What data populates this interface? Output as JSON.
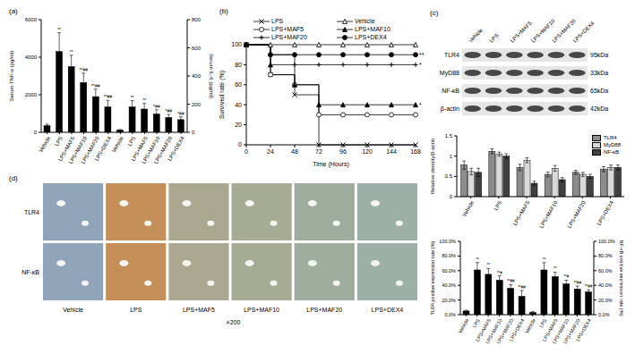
{
  "chart_data": [
    {
      "type": "bar",
      "title": "(a)",
      "categories": [
        "Vehicle",
        "LPS",
        "LPS+MAF5",
        "LPS+MAF10",
        "LPS+MAF20",
        "LPS+DEX4",
        "Vehicle",
        "LPS",
        "LPS+MAF5",
        "LPS+MAF10",
        "LPS+MAF20",
        "LPS+DEX4"
      ],
      "y_label": "Serum TNF-α (pg/ml)",
      "y2_label": "Serum IL-6 (pg/ml)",
      "ylim": [
        0,
        6000
      ],
      "yticks": [
        0,
        2000,
        4000,
        6000
      ],
      "y2lim": [
        0,
        800
      ],
      "y2ticks": [
        0,
        200,
        400,
        600,
        800
      ],
      "series": [
        {
          "color": "#000000",
          "values": [
            350,
            4300,
            3500,
            2650,
            1900,
            1350,
            null,
            null,
            null,
            null,
            null,
            null
          ],
          "errors": [
            80,
            1000,
            600,
            500,
            400,
            350,
            null,
            null,
            null,
            null,
            null,
            null
          ],
          "significance": [
            null,
            "**",
            "**",
            "**##",
            "**##",
            "**##",
            null,
            null,
            null,
            null,
            null,
            null
          ]
        },
        {
          "axis": "y2",
          "color": "#000000",
          "values": [
            null,
            null,
            null,
            null,
            null,
            null,
            15,
            180,
            165,
            130,
            105,
            90
          ],
          "errors": [
            null,
            null,
            null,
            null,
            null,
            null,
            5,
            45,
            40,
            30,
            22,
            20
          ],
          "significance": [
            null,
            null,
            null,
            null,
            null,
            null,
            null,
            "**",
            "**",
            "*##",
            "*##",
            "*##"
          ]
        }
      ]
    },
    {
      "type": "line",
      "title": "(b)",
      "x": [
        0,
        24,
        48,
        72,
        96,
        120,
        144,
        168
      ],
      "x_label": "Time (Hours)",
      "y_label": "Survived rate (%)",
      "xlim": [
        0,
        168
      ],
      "xticks": [
        0,
        24,
        48,
        72,
        96,
        120,
        144,
        168
      ],
      "ylim": [
        0,
        100
      ],
      "yticks": [
        0,
        20,
        40,
        60,
        80,
        100
      ],
      "line_style": "step",
      "series": [
        {
          "name": "LPS",
          "marker": "x",
          "color": "#000000",
          "values": [
            100,
            70,
            50,
            0,
            0,
            0,
            0,
            0
          ]
        },
        {
          "name": "Vehicle",
          "marker": "triangle_open",
          "color": "#000000",
          "values": [
            100,
            100,
            100,
            100,
            100,
            100,
            100,
            100
          ]
        },
        {
          "name": "LPS+MAF5",
          "marker": "circle_open",
          "color": "#000000",
          "values": [
            100,
            70,
            60,
            30,
            30,
            30,
            30,
            30
          ]
        },
        {
          "name": "LPS+MAF10",
          "marker": "triangle",
          "color": "#000000",
          "values": [
            100,
            80,
            60,
            40,
            40,
            40,
            40,
            40
          ],
          "significance": "*"
        },
        {
          "name": "LPS+MAF20",
          "marker": "plus",
          "color": "#000000",
          "values": [
            100,
            90,
            80,
            80,
            80,
            80,
            80,
            80
          ],
          "significance": "*"
        },
        {
          "name": "LPS+DEX4",
          "marker": "circle",
          "color": "#000000",
          "values": [
            100,
            90,
            90,
            90,
            90,
            90,
            90,
            90
          ],
          "significance": "**"
        }
      ]
    },
    {
      "type": "bar",
      "categories": [
        "Vehicle",
        "LPS",
        "LPS+MAF5",
        "LPS+MAF10",
        "LPS+MAF20",
        "LPS+DEX4"
      ],
      "y_label": "Relative density/β-actin",
      "ylim": [
        0,
        1.5
      ],
      "yticks": [
        0,
        0.5,
        1,
        1.5
      ],
      "legend": "upper right",
      "series": [
        {
          "name": "TLR4",
          "color": "#8c8c8c",
          "values": [
            0.78,
            1.12,
            0.72,
            0.55,
            0.6,
            0.68
          ],
          "errors": [
            0.1,
            0.06,
            0.08,
            0.06,
            0.05,
            0.06
          ]
        },
        {
          "name": "MyD88",
          "color": "#d9d9d9",
          "values": [
            0.62,
            1.05,
            0.9,
            0.7,
            0.55,
            0.72
          ],
          "errors": [
            0.08,
            0.05,
            0.06,
            0.07,
            0.05,
            0.06
          ]
        },
        {
          "name": "NF-κB",
          "color": "#404040",
          "values": [
            0.6,
            1.0,
            0.33,
            0.42,
            0.5,
            0.72
          ],
          "errors": [
            0.1,
            0.06,
            0.05,
            0.05,
            0.05,
            0.06
          ]
        }
      ]
    },
    {
      "type": "bar",
      "categories": [
        "Vehicle",
        "LPS",
        "LPS+MAF5",
        "LPS+MAF10",
        "LPS+MAF20",
        "LPS+DEX4",
        "Vehicle",
        "LPS",
        "LPS+MAF5",
        "LPS+MAF10",
        "LPS+MAF20",
        "LPS+DEX4"
      ],
      "y_label": "TLR4 positive expression rate (%)",
      "y2_label": "NF-κB positive expression rate (%)",
      "ylim": [
        0,
        100
      ],
      "yticks": [
        {
          "value": 0,
          "label": "0.0%"
        },
        {
          "value": 20,
          "label": "20.0%"
        },
        {
          "value": 40,
          "label": "40.0%"
        },
        {
          "value": 60,
          "label": "60.0%"
        },
        {
          "value": 80,
          "label": "80.0%"
        },
        {
          "value": 100,
          "label": "100.0%"
        }
      ],
      "y2lim": [
        0,
        100
      ],
      "y2ticks": [
        {
          "value": 0,
          "label": "0.0%"
        },
        {
          "value": 20,
          "label": "20.0%"
        },
        {
          "value": 40,
          "label": "40.0%"
        },
        {
          "value": 60,
          "label": "60.0%"
        },
        {
          "value": 80,
          "label": "80.0%"
        },
        {
          "value": 100,
          "label": "100.0%"
        }
      ],
      "series": [
        {
          "color": "#000000",
          "values": [
            5,
            61,
            55,
            47,
            36,
            25,
            null,
            null,
            null,
            null,
            null,
            null
          ],
          "errors": [
            1,
            10,
            8,
            6,
            5,
            8,
            null,
            null,
            null,
            null,
            null,
            null
          ],
          "significance": [
            null,
            "**",
            "**",
            "**#",
            "**##",
            "**##",
            null,
            null,
            null,
            null,
            null,
            null
          ]
        },
        {
          "axis": "y2",
          "color": "#000000",
          "values": [
            null,
            null,
            null,
            null,
            null,
            null,
            3,
            61,
            52,
            42,
            35,
            31
          ],
          "errors": [
            null,
            null,
            null,
            null,
            null,
            null,
            1,
            10,
            6,
            5,
            4,
            3
          ],
          "significance": [
            null,
            null,
            null,
            null,
            null,
            null,
            null,
            "**",
            "**",
            "**#",
            "**##",
            "**##"
          ]
        }
      ]
    }
  ],
  "western_blot": {
    "title": "(c)",
    "lanes": [
      "Vehicle",
      "LPS",
      "LPS+MAF5",
      "LPS+MAF10",
      "LPS+MAF20",
      "LPS+DEX4"
    ],
    "rows": [
      {
        "protein": "TLR4",
        "size": "95kDa"
      },
      {
        "protein": "MyD88",
        "size": "33kDa"
      },
      {
        "protein": "NF-κB",
        "size": "65kDa"
      },
      {
        "protein": "β-actin",
        "size": "42kDa"
      }
    ]
  },
  "ihc": {
    "title": "(d)",
    "rows": [
      "TLR4",
      "NF-κB"
    ],
    "columns": [
      "Vehicle",
      "LPS",
      "LPS+MAF5",
      "LPS+MAF10",
      "LPS+MAF20",
      "LPS+DEX4"
    ],
    "magnification": "×200"
  }
}
